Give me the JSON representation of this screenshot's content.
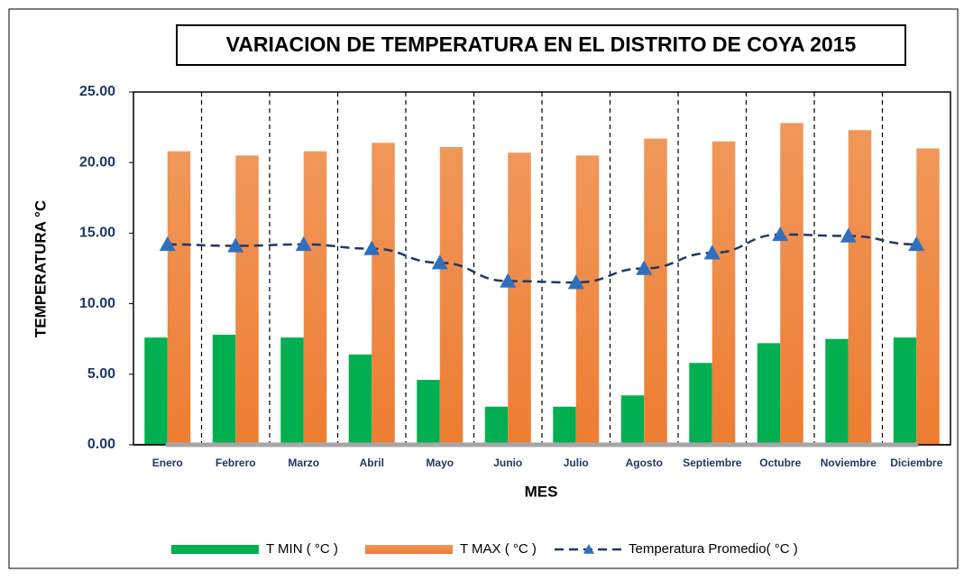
{
  "chart_data": {
    "type": "bar",
    "title": "VARIACION DE TEMPERATURA EN EL DISTRITO DE COYA 2015",
    "x_label": "MES",
    "y_label": "TEMPERATURA °C",
    "categories": [
      "Enero",
      "Febrero",
      "Marzo",
      "Abril",
      "Mayo",
      "Junio",
      "Julio",
      "Agosto",
      "Septiembre",
      "Octubre",
      "Noviembre",
      "Diciembre"
    ],
    "series": [
      {
        "name": "T MIN ( °C )",
        "type": "bar",
        "color": "#00b050",
        "values": [
          7.6,
          7.8,
          7.6,
          6.4,
          4.6,
          2.7,
          2.7,
          3.5,
          5.8,
          7.2,
          7.5,
          7.6
        ]
      },
      {
        "name": "T MAX ( °C )",
        "type": "bar",
        "color": "#ed7d31",
        "values": [
          20.8,
          20.5,
          20.8,
          21.4,
          21.1,
          20.7,
          20.5,
          21.7,
          21.5,
          22.8,
          22.3,
          21.0
        ]
      },
      {
        "name": "Temperatura Promedio( °C )",
        "type": "line",
        "color": "#203864",
        "marker_color": "#2f6fbf",
        "dashed": true,
        "values": [
          14.2,
          14.1,
          14.2,
          13.9,
          12.9,
          11.6,
          11.5,
          12.5,
          13.6,
          14.9,
          14.8,
          14.2
        ]
      }
    ],
    "ylim": [
      0,
      25
    ],
    "yticks": [
      {
        "value": 0,
        "label": "0.00"
      },
      {
        "value": 5,
        "label": "5.00"
      },
      {
        "value": 10,
        "label": "10.00"
      },
      {
        "value": 15,
        "label": "15.00"
      },
      {
        "value": 20,
        "label": "20.00"
      },
      {
        "value": 25,
        "label": "25.00"
      }
    ],
    "category_separators": true,
    "legend": "bottom"
  }
}
